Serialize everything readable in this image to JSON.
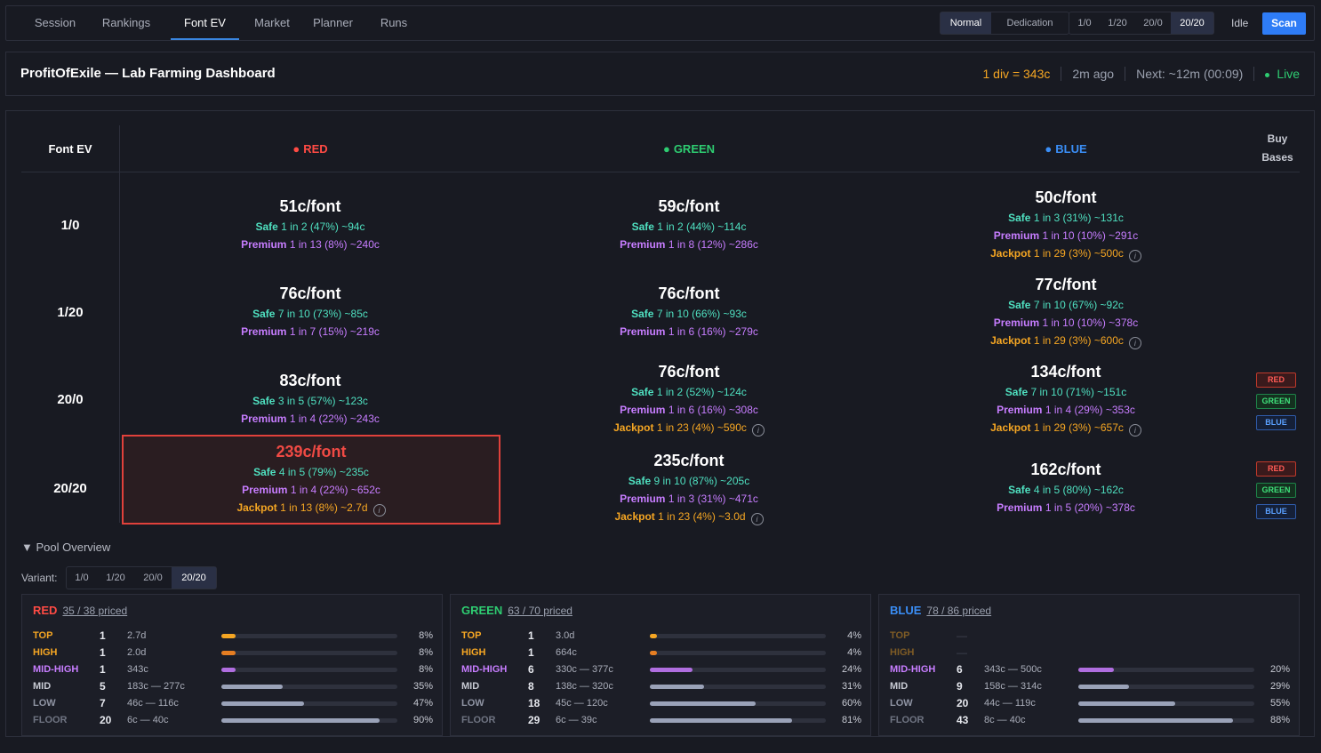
{
  "nav": {
    "tabs": [
      "Session",
      "Rankings",
      "Font EV",
      "Market",
      "Planner",
      "Runs"
    ],
    "active_tab": "Font EV",
    "mode_buttons": [
      "Normal",
      "Dedication"
    ],
    "active_mode": "Normal",
    "variant_buttons": [
      "1/0",
      "1/20",
      "20/0",
      "20/20"
    ],
    "active_variant": "20/20",
    "status": "Idle",
    "scan_label": "Scan"
  },
  "header": {
    "title": "ProfitOfExile — Lab Farming Dashboard",
    "div_rate": "1 div = 343c",
    "updated": "2m ago",
    "next": "Next: ~12m (00:09)",
    "live": "Live"
  },
  "ev_table": {
    "corner": "Font EV",
    "columns": [
      "RED",
      "GREEN",
      "BLUE"
    ],
    "buy_header_line1": "Buy",
    "buy_header_line2": "Bases",
    "rows": [
      {
        "label": "1/0",
        "cells": [
          {
            "price": "51c/font",
            "safe": "1 in 2 (47%) ~94c",
            "premium": "1 in 13 (8%) ~240c",
            "jackpot": null
          },
          {
            "price": "59c/font",
            "safe": "1 in 2 (44%) ~114c",
            "premium": "1 in 8 (12%) ~286c",
            "jackpot": null
          },
          {
            "price": "50c/font",
            "safe": "1 in 3 (31%) ~131c",
            "premium": "1 in 10 (10%) ~291c",
            "jackpot": "1 in 29 (3%) ~500c"
          }
        ]
      },
      {
        "label": "1/20",
        "cells": [
          {
            "price": "76c/font",
            "safe": "7 in 10 (73%) ~85c",
            "premium": "1 in 7 (15%) ~219c",
            "jackpot": null
          },
          {
            "price": "76c/font",
            "safe": "7 in 10 (66%) ~93c",
            "premium": "1 in 6 (16%) ~279c",
            "jackpot": null
          },
          {
            "price": "77c/font",
            "safe": "7 in 10 (67%) ~92c",
            "premium": "1 in 10 (10%) ~378c",
            "jackpot": "1 in 29 (3%) ~600c"
          }
        ]
      },
      {
        "label": "20/0",
        "cells": [
          {
            "price": "83c/font",
            "safe": "3 in 5 (57%) ~123c",
            "premium": "1 in 4 (22%) ~243c",
            "jackpot": null
          },
          {
            "price": "76c/font",
            "safe": "1 in 2 (52%) ~124c",
            "premium": "1 in 6 (16%) ~308c",
            "jackpot": "1 in 23 (4%) ~590c"
          },
          {
            "price": "134c/font",
            "safe": "7 in 10 (71%) ~151c",
            "premium": "1 in 4 (29%) ~353c",
            "jackpot": "1 in 29 (3%) ~657c"
          }
        ]
      },
      {
        "label": "20/20",
        "cells": [
          {
            "price": "239c/font",
            "safe": "4 in 5 (79%) ~235c",
            "premium": "1 in 4 (22%) ~652c",
            "jackpot": "1 in 13 (8%) ~2.7d"
          },
          {
            "price": "235c/font",
            "safe": "9 in 10 (87%) ~205c",
            "premium": "1 in 3 (31%) ~471c",
            "jackpot": "1 in 23 (4%) ~3.0d"
          },
          {
            "price": "162c/font",
            "safe": "4 in 5 (80%) ~162c",
            "premium": "1 in 5 (20%) ~378c",
            "jackpot": null
          }
        ]
      }
    ],
    "tier_labels": {
      "safe": "Safe",
      "premium": "Premium",
      "jackpot": "Jackpot"
    },
    "buy_buttons": [
      "RED",
      "GREEN",
      "BLUE"
    ]
  },
  "pool": {
    "toggle_label": "▼ Pool Overview",
    "variant_label": "Variant:",
    "variants": [
      "1/0",
      "1/20",
      "20/0",
      "20/20"
    ],
    "active_variant": "20/20",
    "cards": [
      {
        "name": "RED",
        "color": "#ff4b44",
        "priced": "35 / 38 priced",
        "tiers": [
          {
            "name": "TOP",
            "count": "1",
            "range": "2.7d",
            "pct": "8%",
            "fill": 0.08,
            "color": "#f5a623"
          },
          {
            "name": "HIGH",
            "count": "1",
            "range": "2.0d",
            "pct": "8%",
            "fill": 0.08,
            "color": "#e67e22"
          },
          {
            "name": "MID-HIGH",
            "count": "1",
            "range": "343c",
            "pct": "8%",
            "fill": 0.08,
            "color": "#b06ee0"
          },
          {
            "name": "MID",
            "count": "5",
            "range": "183c — 277c",
            "pct": "35%",
            "fill": 0.35,
            "color": "#9aa2b8"
          },
          {
            "name": "LOW",
            "count": "7",
            "range": "46c — 116c",
            "pct": "47%",
            "fill": 0.47,
            "color": "#9aa2b8"
          },
          {
            "name": "FLOOR",
            "count": "20",
            "range": "6c — 40c",
            "pct": "90%",
            "fill": 0.9,
            "color": "#9aa2b8"
          }
        ]
      },
      {
        "name": "GREEN",
        "color": "#2ecc71",
        "priced": "63 / 70 priced",
        "tiers": [
          {
            "name": "TOP",
            "count": "1",
            "range": "3.0d",
            "pct": "4%",
            "fill": 0.04,
            "color": "#f5a623"
          },
          {
            "name": "HIGH",
            "count": "1",
            "range": "664c",
            "pct": "4%",
            "fill": 0.04,
            "color": "#e67e22"
          },
          {
            "name": "MID-HIGH",
            "count": "6",
            "range": "330c — 377c",
            "pct": "24%",
            "fill": 0.24,
            "color": "#b06ee0"
          },
          {
            "name": "MID",
            "count": "8",
            "range": "138c — 320c",
            "pct": "31%",
            "fill": 0.31,
            "color": "#9aa2b8"
          },
          {
            "name": "LOW",
            "count": "18",
            "range": "45c — 120c",
            "pct": "60%",
            "fill": 0.6,
            "color": "#9aa2b8"
          },
          {
            "name": "FLOOR",
            "count": "29",
            "range": "6c — 39c",
            "pct": "81%",
            "fill": 0.81,
            "color": "#9aa2b8"
          }
        ]
      },
      {
        "name": "BLUE",
        "color": "#3a8ef6",
        "priced": "78 / 86 priced",
        "tiers": [
          {
            "name": "TOP",
            "count": "—",
            "range": "",
            "pct": "",
            "fill": 0,
            "color": "#f5a623",
            "empty": true
          },
          {
            "name": "HIGH",
            "count": "—",
            "range": "",
            "pct": "",
            "fill": 0,
            "color": "#e67e22",
            "empty": true
          },
          {
            "name": "MID-HIGH",
            "count": "6",
            "range": "343c — 500c",
            "pct": "20%",
            "fill": 0.2,
            "color": "#b06ee0"
          },
          {
            "name": "MID",
            "count": "9",
            "range": "158c — 314c",
            "pct": "29%",
            "fill": 0.29,
            "color": "#9aa2b8"
          },
          {
            "name": "LOW",
            "count": "20",
            "range": "44c — 119c",
            "pct": "55%",
            "fill": 0.55,
            "color": "#9aa2b8"
          },
          {
            "name": "FLOOR",
            "count": "43",
            "range": "8c — 40c",
            "pct": "88%",
            "fill": 0.88,
            "color": "#9aa2b8"
          }
        ]
      }
    ],
    "tier_name_colors": {
      "TOP": "#f5a623",
      "HIGH": "#f5a623",
      "MID-HIGH": "#c77dff",
      "MID": "#c7cad3",
      "LOW": "#8f94a3",
      "FLOOR": "#6f7482"
    }
  }
}
